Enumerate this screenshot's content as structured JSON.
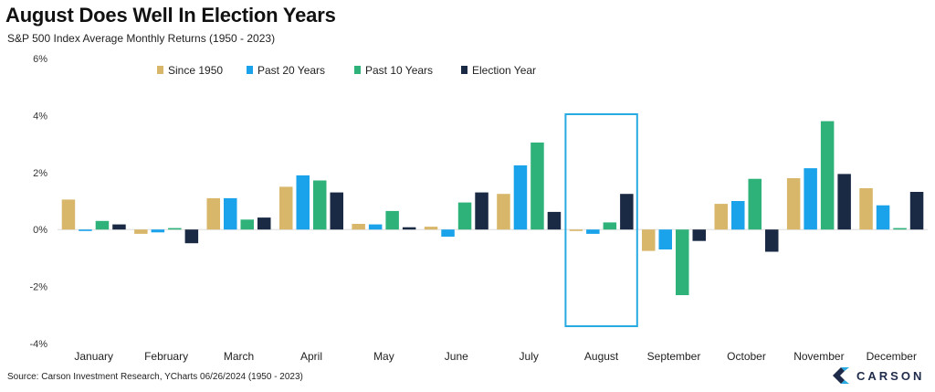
{
  "header": {
    "title": "August Does Well In Election Years",
    "subtitle": "S&P 500 Index Average Monthly Returns (1950 - 2023)"
  },
  "footer": {
    "source": "Source: Carson Investment Research, YCharts 06/26/2024 (1950 - 2023)",
    "brand": "CARSON"
  },
  "colors": {
    "since_1950": "#d9b76a",
    "past_20": "#1aa3ea",
    "past_10": "#2fb27a",
    "election": "#1a2a45",
    "highlight": "#27a9e1"
  },
  "chart_data": {
    "type": "bar",
    "categories": [
      "January",
      "February",
      "March",
      "April",
      "May",
      "June",
      "July",
      "August",
      "September",
      "October",
      "November",
      "December"
    ],
    "series": [
      {
        "name": "Since 1950",
        "values": [
          1.05,
          -0.15,
          1.1,
          1.5,
          0.2,
          0.1,
          1.25,
          -0.05,
          -0.75,
          0.9,
          1.8,
          1.45
        ]
      },
      {
        "name": "Past 20 Years",
        "values": [
          -0.05,
          -0.1,
          1.1,
          1.9,
          0.18,
          -0.25,
          2.25,
          -0.15,
          -0.7,
          1.0,
          2.15,
          0.85
        ]
      },
      {
        "name": "Past 10 Years",
        "values": [
          0.3,
          0.05,
          0.35,
          1.72,
          0.65,
          0.95,
          3.05,
          0.25,
          -2.3,
          1.78,
          3.8,
          0.05
        ]
      },
      {
        "name": "Election Year",
        "values": [
          0.18,
          -0.48,
          0.42,
          1.3,
          0.08,
          1.3,
          0.62,
          1.25,
          -0.4,
          -0.78,
          1.95,
          1.32
        ]
      }
    ],
    "ylim": [
      -4,
      6
    ],
    "yticks": [
      -4,
      -2,
      0,
      2,
      4,
      6
    ],
    "ytick_labels": [
      "-4%",
      "-2%",
      "0%",
      "2%",
      "4%",
      "6%"
    ],
    "highlight_category": "August",
    "legend_position": "top"
  }
}
